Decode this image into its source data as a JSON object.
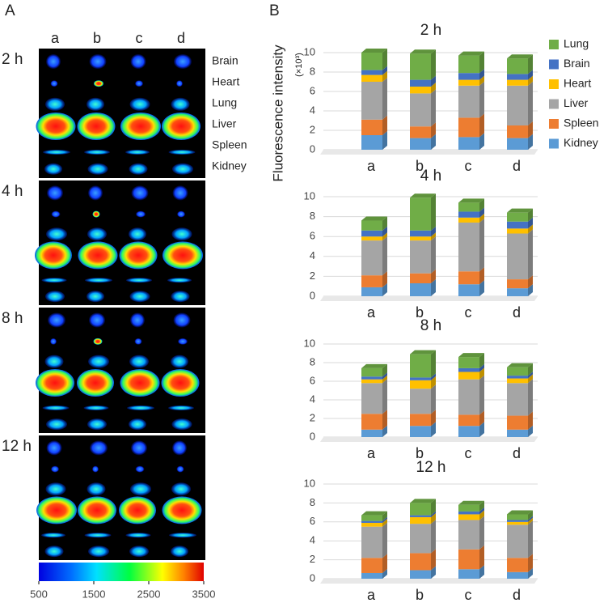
{
  "panel_labels": [
    "A",
    "B"
  ],
  "images": {
    "columns": [
      "a",
      "b",
      "c",
      "d"
    ],
    "rows": [
      "2 h",
      "4 h",
      "8 h",
      "12 h"
    ],
    "organs": [
      "Brain",
      "Heart",
      "Lung",
      "Liver",
      "Spleen",
      "Kidney"
    ],
    "colorbar": {
      "lim": [
        500,
        3500
      ],
      "ticks": [
        500,
        1500,
        2500,
        3500
      ]
    }
  },
  "chart_data": [
    {
      "type": "stacked-bar",
      "title": "2 h",
      "ylabel": "Fluorescence intensity",
      "yunit": "(×10³)",
      "categories": [
        "a",
        "b",
        "c",
        "d"
      ],
      "ylim": [
        0,
        10
      ],
      "yticks": [
        0,
        2,
        4,
        6,
        8,
        10
      ],
      "grid": true,
      "legend": "right",
      "series": [
        {
          "name": "Lung",
          "color": "#70ad47",
          "values": [
            1.8,
            2.7,
            1.8,
            1.6
          ]
        },
        {
          "name": "Brain",
          "color": "#4472c4",
          "values": [
            0.5,
            0.7,
            0.7,
            0.6
          ]
        },
        {
          "name": "Heart",
          "color": "#ffc000",
          "values": [
            0.7,
            0.7,
            0.6,
            0.6
          ]
        },
        {
          "name": "Liver",
          "color": "#a5a5a5",
          "values": [
            3.9,
            3.4,
            3.3,
            4.1
          ]
        },
        {
          "name": "Spleen",
          "color": "#ed7d31",
          "values": [
            1.6,
            1.2,
            2.0,
            1.3
          ]
        },
        {
          "name": "Kidney",
          "color": "#5b9bd5",
          "values": [
            1.5,
            1.2,
            1.3,
            1.2
          ]
        }
      ]
    },
    {
      "type": "stacked-bar",
      "title": "4 h",
      "categories": [
        "a",
        "b",
        "c",
        "d"
      ],
      "ylim": [
        0,
        10
      ],
      "yticks": [
        0,
        2,
        4,
        6,
        8,
        10
      ],
      "grid": true,
      "series": [
        {
          "color": "#70ad47",
          "values": [
            1.0,
            3.3,
            0.9,
            0.9
          ]
        },
        {
          "color": "#4472c4",
          "values": [
            0.6,
            0.6,
            0.6,
            0.7
          ]
        },
        {
          "color": "#ffc000",
          "values": [
            0.4,
            0.4,
            0.5,
            0.5
          ]
        },
        {
          "color": "#a5a5a5",
          "values": [
            3.5,
            3.3,
            4.9,
            4.6
          ]
        },
        {
          "color": "#ed7d31",
          "values": [
            1.2,
            1.0,
            1.3,
            0.9
          ]
        },
        {
          "color": "#5b9bd5",
          "values": [
            0.9,
            1.3,
            1.2,
            0.8
          ]
        }
      ]
    },
    {
      "type": "stacked-bar",
      "title": "8 h",
      "categories": [
        "a",
        "b",
        "c",
        "d"
      ],
      "ylim": [
        0,
        10
      ],
      "yticks": [
        0,
        2,
        4,
        6,
        8,
        10
      ],
      "grid": true,
      "series": [
        {
          "color": "#70ad47",
          "values": [
            0.9,
            2.5,
            1.2,
            0.9
          ]
        },
        {
          "color": "#4472c4",
          "values": [
            0.3,
            0.3,
            0.4,
            0.3
          ]
        },
        {
          "color": "#ffc000",
          "values": [
            0.4,
            0.9,
            0.8,
            0.5
          ]
        },
        {
          "color": "#a5a5a5",
          "values": [
            3.3,
            2.7,
            3.8,
            3.5
          ]
        },
        {
          "color": "#ed7d31",
          "values": [
            1.7,
            1.3,
            1.2,
            1.5
          ]
        },
        {
          "color": "#5b9bd5",
          "values": [
            0.8,
            1.2,
            1.2,
            0.8
          ]
        }
      ]
    },
    {
      "type": "stacked-bar",
      "title": "12 h",
      "categories": [
        "a",
        "b",
        "c",
        "d"
      ],
      "ylim": [
        0,
        10
      ],
      "yticks": [
        0,
        2,
        4,
        6,
        8,
        10
      ],
      "grid": true,
      "series": [
        {
          "color": "#70ad47",
          "values": [
            0.6,
            1.3,
            0.7,
            0.6
          ]
        },
        {
          "color": "#4472c4",
          "values": [
            0.2,
            0.2,
            0.3,
            0.2
          ]
        },
        {
          "color": "#ffc000",
          "values": [
            0.4,
            0.7,
            0.6,
            0.3
          ]
        },
        {
          "color": "#a5a5a5",
          "values": [
            3.3,
            3.1,
            3.1,
            3.5
          ]
        },
        {
          "color": "#ed7d31",
          "values": [
            1.6,
            1.8,
            2.1,
            1.5
          ]
        },
        {
          "color": "#5b9bd5",
          "values": [
            0.6,
            0.9,
            1.0,
            0.7
          ]
        }
      ]
    }
  ]
}
